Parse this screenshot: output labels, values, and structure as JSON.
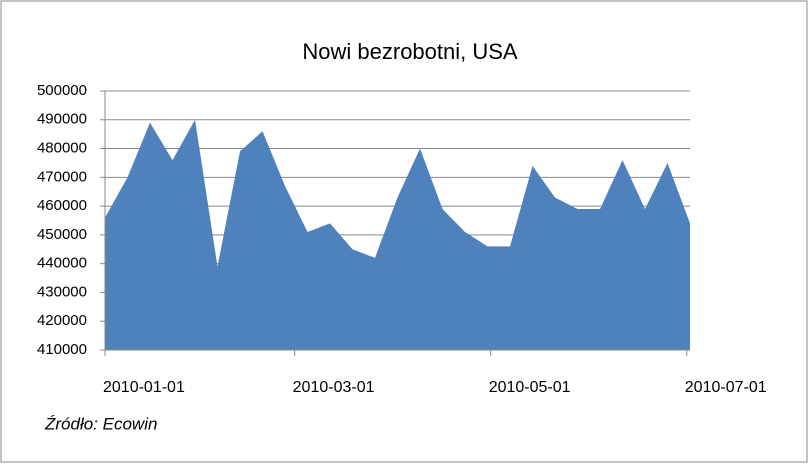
{
  "chart_data": {
    "type": "area",
    "title": "Nowi bezrobotni, USA",
    "x": [
      "2010-01-01",
      "2010-01-08",
      "2010-01-15",
      "2010-01-22",
      "2010-01-29",
      "2010-02-05",
      "2010-02-12",
      "2010-02-19",
      "2010-02-26",
      "2010-03-05",
      "2010-03-12",
      "2010-03-19",
      "2010-03-26",
      "2010-04-02",
      "2010-04-09",
      "2010-04-16",
      "2010-04-23",
      "2010-04-30",
      "2010-05-07",
      "2010-05-14",
      "2010-05-21",
      "2010-05-28",
      "2010-06-04",
      "2010-06-11",
      "2010-06-18",
      "2010-06-25",
      "2010-07-02"
    ],
    "values": [
      456000,
      470000,
      489000,
      476000,
      490000,
      439000,
      479000,
      486000,
      467000,
      451000,
      454000,
      445000,
      442000,
      463000,
      480000,
      459000,
      451000,
      446000,
      446000,
      474000,
      463000,
      459000,
      459000,
      476000,
      459000,
      475000,
      454000
    ],
    "color": "#4f81bd",
    "xlim": [
      "2010-01-01",
      "2010-07-02"
    ],
    "xticks": [
      "2010-01-01",
      "2010-03-01",
      "2010-05-01",
      "2010-07-01"
    ],
    "ylim": [
      410000,
      500000
    ],
    "yticks": [
      410000,
      420000,
      430000,
      440000,
      450000,
      460000,
      470000,
      480000,
      490000,
      500000
    ],
    "grid": true,
    "source": "Źródło: Ecowin"
  }
}
